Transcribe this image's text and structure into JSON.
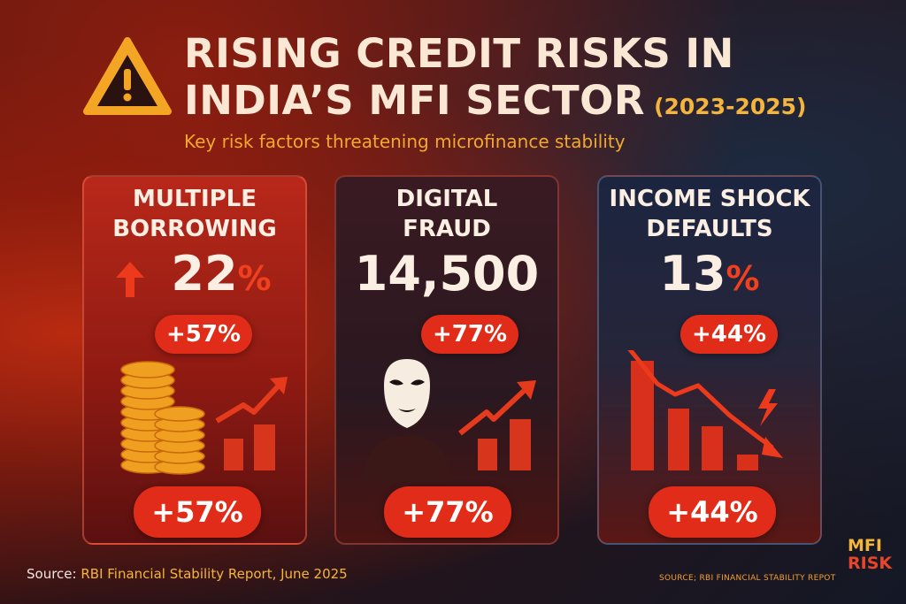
{
  "header": {
    "icon": "warning-icon",
    "title_line1": "RISING CREDIT RISKS IN",
    "title_line2": "INDIA’S MFI SECTOR",
    "years": "(2023-2025)",
    "subtitle": "Key risk factors threatening microfinance stability"
  },
  "cards": [
    {
      "title_line1": "MULTIPLE",
      "title_line2": "BORROWING",
      "value": "22",
      "unit": "%",
      "change_small": "+57%",
      "change_large": "+57%",
      "icons": [
        "arrow-up-icon",
        "coins-icon",
        "rising-bar-chart-icon"
      ]
    },
    {
      "title_line1": "DIGITAL",
      "title_line2": "FRAUD",
      "value": "14,500",
      "unit": "",
      "change_small": "+77%",
      "change_large": "+77%",
      "icons": [
        "masked-fraudster-icon",
        "rising-bar-chart-icon"
      ]
    },
    {
      "title_line1": "INCOME SHOCK",
      "title_line2": "DEFAULTS",
      "value": "13",
      "unit": "%",
      "change_small": "+44%",
      "change_large": "+44%",
      "icons": [
        "falling-bar-chart-icon",
        "lightning-icon"
      ]
    }
  ],
  "footer": {
    "source_label": "Source:",
    "source_text": "RBI Financial Stability Report, June 2025",
    "brand_line1": "MFI",
    "brand_line2": "RISK",
    "brand_source": "SOURCE; RBI FINANCIAL STABILITY REPOT"
  },
  "colors": {
    "accent_red": "#e02c18",
    "accent_orange": "#f5b43c",
    "title_text": "#fbe8d4"
  }
}
